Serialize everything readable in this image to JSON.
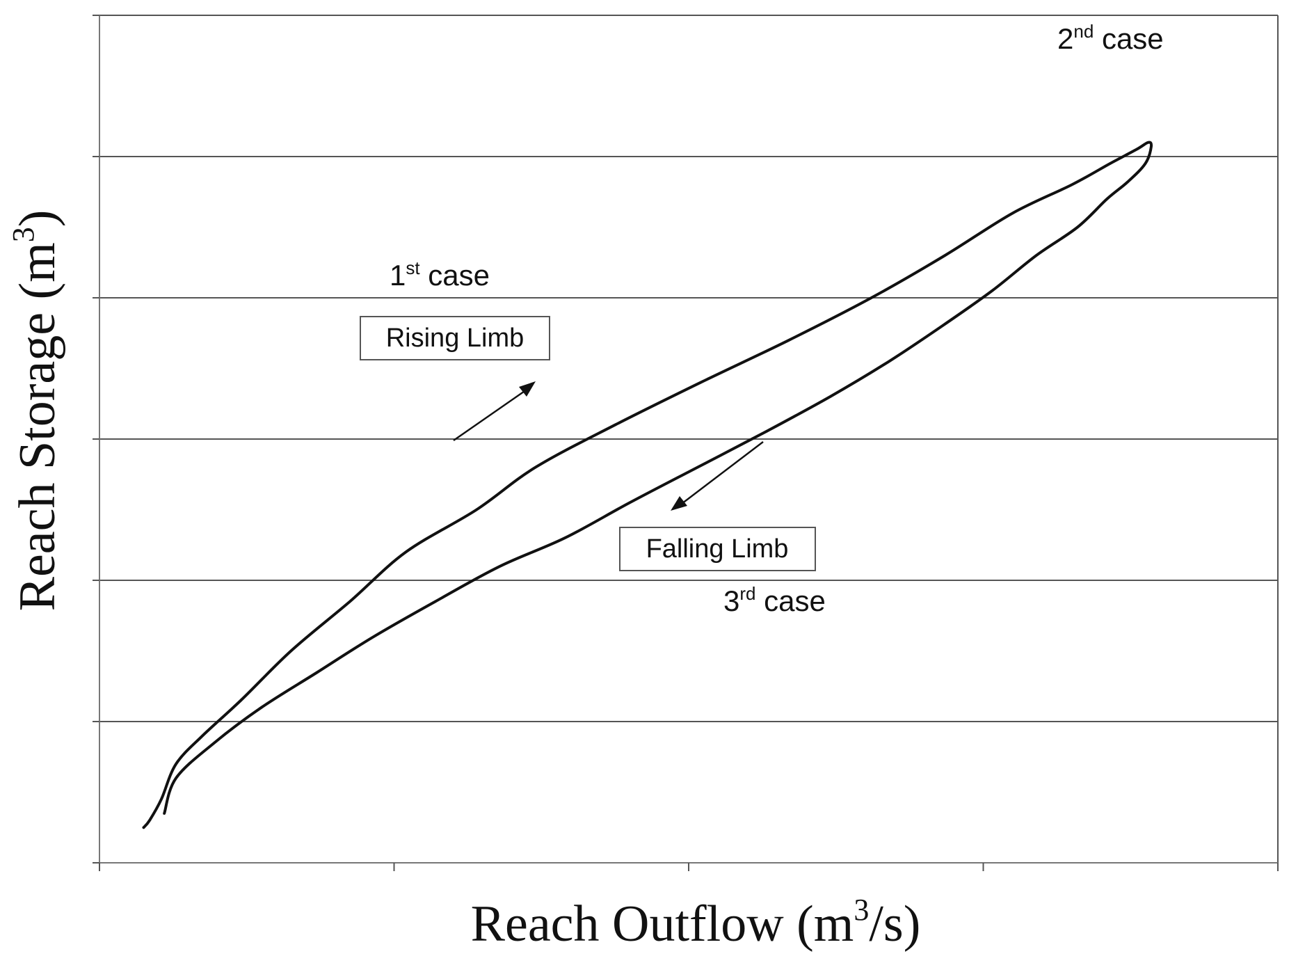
{
  "chart_data": {
    "type": "line",
    "xlabel": "Reach Outflow (m",
    "xlabel_sup": "3",
    "xlabel_tail": "/s)",
    "ylabel": "Reach Storage (m",
    "ylabel_sup": "3",
    "ylabel_tail": ")",
    "xlim": [
      0,
      4
    ],
    "ylim": [
      0,
      6
    ],
    "x_ticks": 4,
    "y_ticks": 6,
    "grid": "horizontal",
    "series": [
      {
        "x": [
          0.15,
          0.17,
          0.21,
          0.26,
          0.35,
          0.48,
          0.65,
          0.85,
          1.04,
          1.28,
          1.48,
          1.75,
          2.04,
          2.34,
          2.62,
          2.87,
          3.1,
          3.3,
          3.43,
          3.52,
          3.56,
          3.57,
          3.55,
          3.49,
          3.42,
          3.32,
          3.18,
          3.03,
          2.86,
          2.68,
          2.48,
          2.26,
          2.03,
          1.8,
          1.58,
          1.36,
          1.14,
          0.93,
          0.74,
          0.55,
          0.39,
          0.26,
          0.22
        ],
        "y": [
          0.25,
          0.3,
          0.45,
          0.7,
          0.9,
          1.15,
          1.5,
          1.85,
          2.2,
          2.5,
          2.8,
          3.1,
          3.4,
          3.7,
          4.0,
          4.3,
          4.6,
          4.8,
          4.95,
          5.05,
          5.1,
          5.07,
          4.95,
          4.82,
          4.7,
          4.5,
          4.3,
          4.05,
          3.8,
          3.55,
          3.3,
          3.05,
          2.8,
          2.55,
          2.3,
          2.1,
          1.85,
          1.6,
          1.35,
          1.1,
          0.85,
          0.6,
          0.35
        ]
      }
    ],
    "annotations": {
      "case1": {
        "num": "1",
        "sup": "st",
        "text": " case"
      },
      "case2": {
        "num": "2",
        "sup": "nd",
        "text": " case"
      },
      "case3": {
        "num": "3",
        "sup": "rd",
        "text": " case"
      },
      "rising": "Rising Limb",
      "falling": "Falling Limb"
    }
  }
}
